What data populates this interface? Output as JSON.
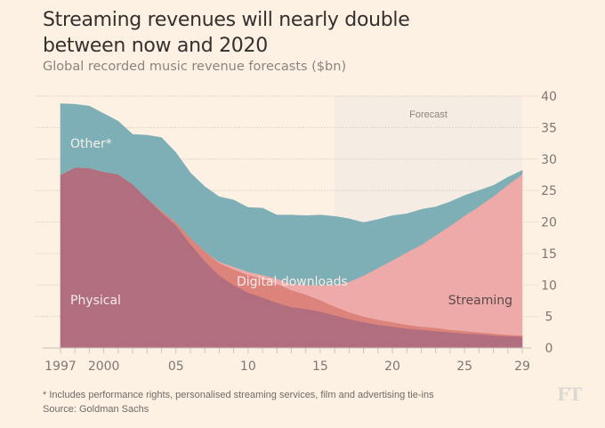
{
  "header": {
    "title_line1": "Streaming revenues will nearly double",
    "title_line2": "between now and 2020",
    "subtitle": "Global recorded music revenue forecasts ($bn)"
  },
  "footer": {
    "note": "* Includes performance rights, personalised streaming services, film and advertising tie-ins",
    "source": "Source: Goldman Sachs",
    "logo": "FT"
  },
  "colors": {
    "background": "#fdf1e4",
    "physical": "#b06e7e",
    "digital_downloads": "#dc847b",
    "streaming": "#eeaaa9",
    "other": "#7eafb6",
    "forecast_band": "#f5ede4",
    "grid": "#d8d0c8",
    "axis_text": "#7d7873"
  },
  "chart_data": {
    "type": "area",
    "stacked": true,
    "title": "Streaming revenues will nearly double between now and 2020",
    "subtitle": "Global recorded music revenue forecasts ($bn)",
    "xlabel": "",
    "ylabel": "",
    "x": [
      1997,
      1998,
      1999,
      2000,
      2001,
      2002,
      2003,
      2004,
      2005,
      2006,
      2007,
      2008,
      2009,
      2010,
      2011,
      2012,
      2013,
      2014,
      2015,
      2016,
      2017,
      2018,
      2019,
      2020,
      2021,
      2022,
      2023,
      2024,
      2025,
      2026,
      2027,
      2028,
      2029
    ],
    "x_tick_labels": [
      {
        "x": 1997,
        "label": "1997"
      },
      {
        "x": 2000,
        "label": "2000"
      },
      {
        "x": 2005,
        "label": "05"
      },
      {
        "x": 2010,
        "label": "10"
      },
      {
        "x": 2015,
        "label": "15"
      },
      {
        "x": 2020,
        "label": "20"
      },
      {
        "x": 2025,
        "label": "25"
      },
      {
        "x": 2029,
        "label": "29"
      }
    ],
    "ylim": [
      0,
      40
    ],
    "y_ticks": [
      0,
      5,
      10,
      15,
      20,
      25,
      30,
      35,
      40
    ],
    "y_axis_side": "right",
    "grid": true,
    "forecast_region": {
      "start": 2016,
      "end": 2029,
      "label": "Forecast"
    },
    "series": [
      {
        "name": "Physical",
        "label": "Physical",
        "values": [
          27.5,
          28.7,
          28.6,
          28.0,
          27.6,
          26.0,
          23.8,
          21.5,
          19.5,
          16.5,
          13.8,
          11.5,
          10.0,
          8.8,
          8.0,
          7.2,
          6.5,
          6.2,
          5.8,
          5.2,
          4.6,
          4.1,
          3.7,
          3.4,
          3.1,
          2.9,
          2.7,
          2.5,
          2.3,
          2.2,
          2.0,
          1.9,
          1.8
        ]
      },
      {
        "name": "Digital downloads",
        "label": "Digital downloads",
        "values": [
          0,
          0,
          0,
          0,
          0,
          0,
          0,
          0.3,
          0.5,
          1.0,
          1.6,
          2.0,
          2.5,
          2.8,
          3.0,
          3.0,
          2.7,
          2.3,
          1.8,
          1.4,
          1.1,
          0.9,
          0.8,
          0.7,
          0.6,
          0.5,
          0.5,
          0.4,
          0.4,
          0.3,
          0.3,
          0.2,
          0.2
        ]
      },
      {
        "name": "Streaming",
        "label": "Streaming",
        "values": [
          0,
          0,
          0,
          0,
          0,
          0,
          0,
          0,
          0,
          0,
          0,
          0.2,
          0.4,
          0.5,
          0.6,
          0.8,
          1.0,
          1.5,
          2.4,
          3.4,
          4.8,
          6.5,
          8.2,
          9.8,
          11.5,
          13.0,
          14.7,
          16.5,
          18.3,
          20.0,
          21.8,
          23.8,
          25.6
        ]
      },
      {
        "name": "Other*",
        "label": "Other*",
        "values": [
          11.3,
          10.0,
          9.8,
          9.2,
          8.4,
          7.9,
          10.0,
          11.6,
          11.0,
          10.3,
          10.2,
          10.3,
          10.6,
          10.2,
          10.6,
          10.1,
          10.9,
          11.0,
          11.1,
          10.9,
          10.0,
          8.4,
          7.7,
          7.1,
          6.1,
          5.6,
          4.5,
          3.8,
          3.2,
          2.5,
          1.7,
          1.2,
          0.6
        ]
      }
    ],
    "totals_approx": [
      38.8,
      38.7,
      38.4,
      37.2,
      36.0,
      33.9,
      33.8,
      33.4,
      31.0,
      27.8,
      25.6,
      24.0,
      23.5,
      22.3,
      22.2,
      21.1,
      21.1,
      21.0,
      21.1,
      20.9,
      20.5,
      19.9,
      20.4,
      21.0,
      21.3,
      22.0,
      22.4,
      23.2,
      24.2,
      25.0,
      25.8,
      27.1,
      28.2
    ],
    "annotations": [
      {
        "text": "Other*",
        "series": "Other*"
      },
      {
        "text": "Physical",
        "series": "Physical"
      },
      {
        "text": "Digital downloads",
        "series": "Digital downloads"
      },
      {
        "text": "Streaming",
        "series": "Streaming"
      },
      {
        "text": "Forecast",
        "series": null
      }
    ]
  }
}
